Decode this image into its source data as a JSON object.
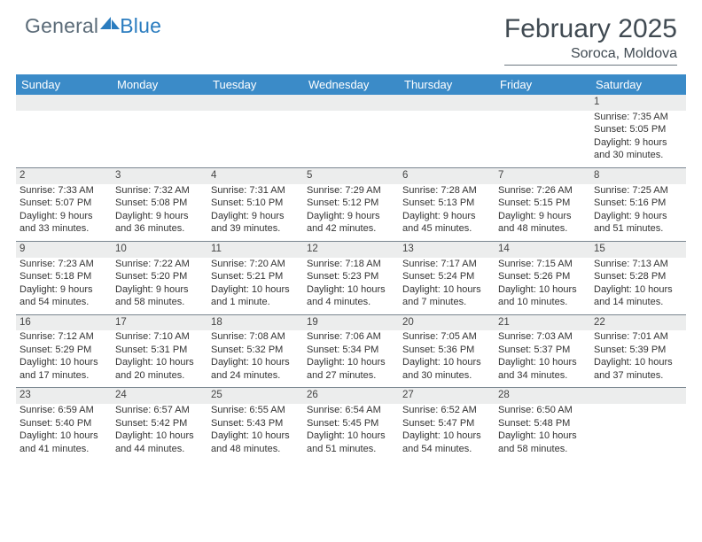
{
  "brand": {
    "part1": "General",
    "part2": "Blue"
  },
  "title": {
    "month": "February 2025",
    "location": "Soroca, Moldova"
  },
  "colors": {
    "header_bg": "#3b8bc8",
    "header_text": "#ffffff",
    "daynum_bg": "#eceded",
    "row_border": "#7a8690",
    "body_text": "#333333",
    "brand_gray": "#5b6b78",
    "brand_blue": "#2a7cbf",
    "title_color": "#404a52"
  },
  "weekdays": [
    "Sunday",
    "Monday",
    "Tuesday",
    "Wednesday",
    "Thursday",
    "Friday",
    "Saturday"
  ],
  "weeks": [
    [
      null,
      null,
      null,
      null,
      null,
      null,
      {
        "d": "1",
        "sr": "7:35 AM",
        "ss": "5:05 PM",
        "dl": "9 hours and 30 minutes."
      }
    ],
    [
      {
        "d": "2",
        "sr": "7:33 AM",
        "ss": "5:07 PM",
        "dl": "9 hours and 33 minutes."
      },
      {
        "d": "3",
        "sr": "7:32 AM",
        "ss": "5:08 PM",
        "dl": "9 hours and 36 minutes."
      },
      {
        "d": "4",
        "sr": "7:31 AM",
        "ss": "5:10 PM",
        "dl": "9 hours and 39 minutes."
      },
      {
        "d": "5",
        "sr": "7:29 AM",
        "ss": "5:12 PM",
        "dl": "9 hours and 42 minutes."
      },
      {
        "d": "6",
        "sr": "7:28 AM",
        "ss": "5:13 PM",
        "dl": "9 hours and 45 minutes."
      },
      {
        "d": "7",
        "sr": "7:26 AM",
        "ss": "5:15 PM",
        "dl": "9 hours and 48 minutes."
      },
      {
        "d": "8",
        "sr": "7:25 AM",
        "ss": "5:16 PM",
        "dl": "9 hours and 51 minutes."
      }
    ],
    [
      {
        "d": "9",
        "sr": "7:23 AM",
        "ss": "5:18 PM",
        "dl": "9 hours and 54 minutes."
      },
      {
        "d": "10",
        "sr": "7:22 AM",
        "ss": "5:20 PM",
        "dl": "9 hours and 58 minutes."
      },
      {
        "d": "11",
        "sr": "7:20 AM",
        "ss": "5:21 PM",
        "dl": "10 hours and 1 minute."
      },
      {
        "d": "12",
        "sr": "7:18 AM",
        "ss": "5:23 PM",
        "dl": "10 hours and 4 minutes."
      },
      {
        "d": "13",
        "sr": "7:17 AM",
        "ss": "5:24 PM",
        "dl": "10 hours and 7 minutes."
      },
      {
        "d": "14",
        "sr": "7:15 AM",
        "ss": "5:26 PM",
        "dl": "10 hours and 10 minutes."
      },
      {
        "d": "15",
        "sr": "7:13 AM",
        "ss": "5:28 PM",
        "dl": "10 hours and 14 minutes."
      }
    ],
    [
      {
        "d": "16",
        "sr": "7:12 AM",
        "ss": "5:29 PM",
        "dl": "10 hours and 17 minutes."
      },
      {
        "d": "17",
        "sr": "7:10 AM",
        "ss": "5:31 PM",
        "dl": "10 hours and 20 minutes."
      },
      {
        "d": "18",
        "sr": "7:08 AM",
        "ss": "5:32 PM",
        "dl": "10 hours and 24 minutes."
      },
      {
        "d": "19",
        "sr": "7:06 AM",
        "ss": "5:34 PM",
        "dl": "10 hours and 27 minutes."
      },
      {
        "d": "20",
        "sr": "7:05 AM",
        "ss": "5:36 PM",
        "dl": "10 hours and 30 minutes."
      },
      {
        "d": "21",
        "sr": "7:03 AM",
        "ss": "5:37 PM",
        "dl": "10 hours and 34 minutes."
      },
      {
        "d": "22",
        "sr": "7:01 AM",
        "ss": "5:39 PM",
        "dl": "10 hours and 37 minutes."
      }
    ],
    [
      {
        "d": "23",
        "sr": "6:59 AM",
        "ss": "5:40 PM",
        "dl": "10 hours and 41 minutes."
      },
      {
        "d": "24",
        "sr": "6:57 AM",
        "ss": "5:42 PM",
        "dl": "10 hours and 44 minutes."
      },
      {
        "d": "25",
        "sr": "6:55 AM",
        "ss": "5:43 PM",
        "dl": "10 hours and 48 minutes."
      },
      {
        "d": "26",
        "sr": "6:54 AM",
        "ss": "5:45 PM",
        "dl": "10 hours and 51 minutes."
      },
      {
        "d": "27",
        "sr": "6:52 AM",
        "ss": "5:47 PM",
        "dl": "10 hours and 54 minutes."
      },
      {
        "d": "28",
        "sr": "6:50 AM",
        "ss": "5:48 PM",
        "dl": "10 hours and 58 minutes."
      },
      null
    ]
  ],
  "labels": {
    "sunrise": "Sunrise: ",
    "sunset": "Sunset: ",
    "daylight": "Daylight: "
  }
}
